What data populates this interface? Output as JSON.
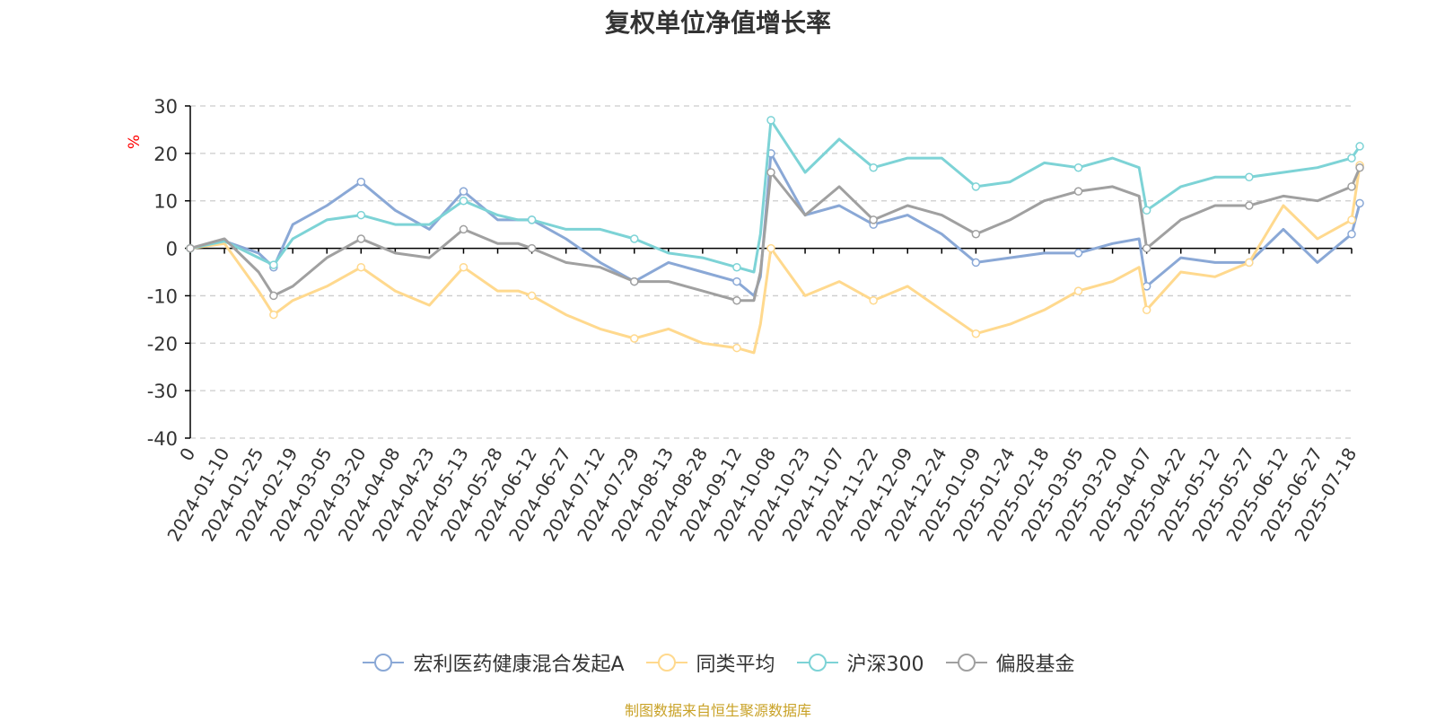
{
  "title": "复权单位净值增长率",
  "source": "制图数据来自恒生聚源数据库",
  "colors": {
    "axis": "#000000",
    "grid": "#cccccc",
    "tick_text": "#333333",
    "unit_text": "#ff0000"
  },
  "chart_data": {
    "type": "line",
    "ylabel": "%",
    "ylim": [
      -40,
      30
    ],
    "yticks": [
      30,
      20,
      10,
      0,
      -10,
      -20,
      -30,
      -40
    ],
    "grid": true,
    "legend_position": "bottom",
    "x_tick_labels": [
      "0",
      "2024-01-10",
      "2024-01-25",
      "2024-02-19",
      "2024-03-05",
      "2024-03-20",
      "2024-04-08",
      "2024-04-23",
      "2024-05-13",
      "2024-05-28",
      "2024-06-12",
      "2024-06-27",
      "2024-07-12",
      "2024-07-29",
      "2024-08-13",
      "2024-08-28",
      "2024-09-12",
      "2024-10-08",
      "2024-10-23",
      "2024-11-07",
      "2024-11-22",
      "2024-12-09",
      "2024-12-24",
      "2025-01-09",
      "2025-01-24",
      "2025-02-18",
      "2025-03-05",
      "2025-03-20",
      "2025-04-07",
      "2025-04-22",
      "2025-05-12",
      "2025-05-27",
      "2025-06-12",
      "2025-06-27",
      "2025-07-18"
    ],
    "x": [
      "0",
      "2024-01-10",
      "2024-01-25",
      "2024-02-05",
      "2024-02-19",
      "2024-03-05",
      "2024-03-20",
      "2024-04-08",
      "2024-04-23",
      "2024-05-13",
      "2024-05-28",
      "2024-06-06",
      "2024-06-12",
      "2024-06-27",
      "2024-07-12",
      "2024-07-29",
      "2024-08-13",
      "2024-08-28",
      "2024-09-12",
      "2024-09-25",
      "2024-09-30",
      "2024-10-08",
      "2024-10-23",
      "2024-11-07",
      "2024-11-22",
      "2024-12-09",
      "2024-12-24",
      "2025-01-09",
      "2025-01-24",
      "2025-02-18",
      "2025-03-05",
      "2025-03-20",
      "2025-04-03",
      "2025-04-07",
      "2025-04-22",
      "2025-05-12",
      "2025-05-27",
      "2025-06-12",
      "2025-06-27",
      "2025-07-18",
      "2025-07-23"
    ],
    "series": [
      {
        "name": "宏利医药健康混合发起A",
        "color": "#8aa8d6",
        "values": [
          0,
          1.5,
          -1.0,
          -4.0,
          5.0,
          9.0,
          14.0,
          8.0,
          4.0,
          12.0,
          6.0,
          6.0,
          6.0,
          2.0,
          -3.0,
          -7.0,
          -3.0,
          -5.0,
          -7.0,
          -10.0,
          -6.0,
          20.0,
          7.0,
          9.0,
          5.0,
          7.0,
          3.0,
          -3.0,
          -2.0,
          -1.0,
          -1.0,
          1.0,
          2.0,
          -8.0,
          -2.0,
          -3.0,
          -3.0,
          4.0,
          -3.0,
          3.0,
          9.5
        ]
      },
      {
        "name": "同类平均",
        "color": "#ffd98e",
        "values": [
          0,
          1.0,
          -9.0,
          -14.0,
          -11.0,
          -8.0,
          -4.0,
          -9.0,
          -12.0,
          -4.0,
          -9.0,
          -9.0,
          -10.0,
          -14.0,
          -17.0,
          -19.0,
          -17.0,
          -20.0,
          -21.0,
          -22.0,
          -16.0,
          0.0,
          -10.0,
          -7.0,
          -11.0,
          -8.0,
          -13.0,
          -18.0,
          -16.0,
          -13.0,
          -9.0,
          -7.0,
          -4.0,
          -13.0,
          -5.0,
          -6.0,
          -3.0,
          9.0,
          2.0,
          6.0,
          17.5
        ]
      },
      {
        "name": "沪深300",
        "color": "#7dd3d6",
        "values": [
          0,
          1.5,
          -2.0,
          -3.5,
          2.0,
          6.0,
          7.0,
          5.0,
          5.0,
          10.0,
          7.0,
          6.0,
          6.0,
          4.0,
          4.0,
          2.0,
          -1.0,
          -2.0,
          -4.0,
          -5.0,
          3.0,
          27.0,
          16.0,
          23.0,
          17.0,
          19.0,
          19.0,
          13.0,
          14.0,
          18.0,
          17.0,
          19.0,
          17.0,
          8.0,
          13.0,
          15.0,
          15.0,
          16.0,
          17.0,
          19.0,
          21.5
        ]
      },
      {
        "name": "偏股基金",
        "color": "#a0a0a0",
        "values": [
          0,
          2.0,
          -5.0,
          -10.0,
          -8.0,
          -2.0,
          2.0,
          -1.0,
          -2.0,
          4.0,
          1.0,
          1.0,
          0.0,
          -3.0,
          -4.0,
          -7.0,
          -7.0,
          -9.0,
          -11.0,
          -11.0,
          -5.0,
          16.0,
          7.0,
          13.0,
          6.0,
          9.0,
          7.0,
          3.0,
          6.0,
          10.0,
          12.0,
          13.0,
          11.0,
          0.0,
          6.0,
          9.0,
          9.0,
          11.0,
          10.0,
          13.0,
          17.0
        ]
      }
    ]
  }
}
